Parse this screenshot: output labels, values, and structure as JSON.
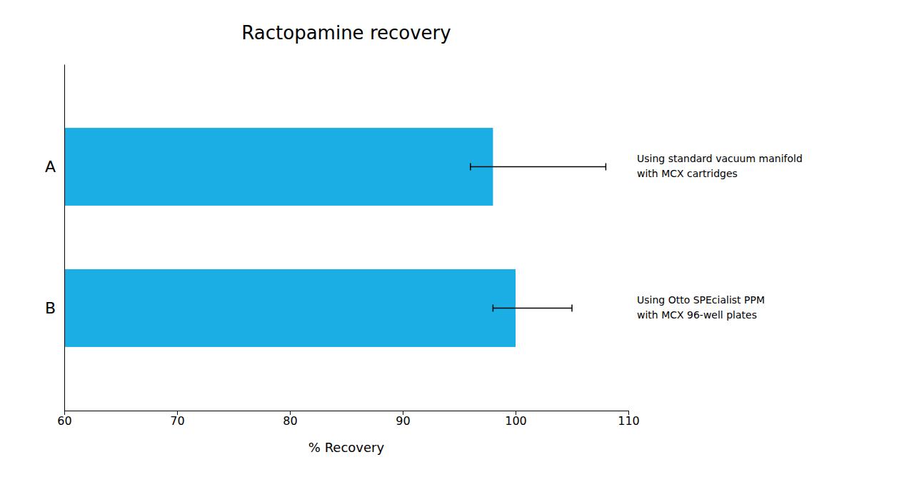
{
  "chart_data": {
    "type": "bar",
    "orientation": "horizontal",
    "title": "Ractopamine recovery",
    "categories": [
      "A",
      "B"
    ],
    "values": [
      98.0,
      100.0
    ],
    "errors_left": [
      2.0,
      2.0
    ],
    "errors_right": [
      10.0,
      5.0
    ],
    "color": "#1aaee5",
    "xlim": [
      60,
      110
    ],
    "xticks": [
      60,
      70,
      80,
      90,
      100,
      110
    ],
    "xlabel": "% Recovery",
    "annotations": [
      "Using standard vacuum manifold\nwith MCX cartridges",
      "Using Otto SPEcialist PPM\nwith MCX 96-well plates"
    ],
    "grid": false
  }
}
